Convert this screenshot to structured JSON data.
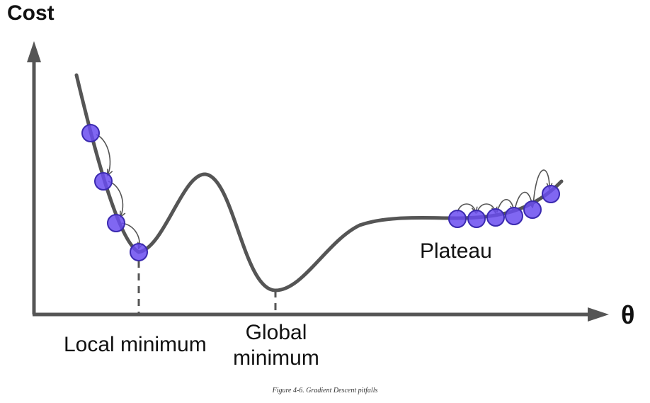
{
  "axes": {
    "y_label": "Cost",
    "x_label": "θ"
  },
  "labels": {
    "local_minimum": "Local minimum",
    "global_minimum": "Global minimum",
    "plateau": "Plateau"
  },
  "caption": "Figure 4-6. Gradient Descent pitfalls",
  "colors": {
    "axis": "#555555",
    "curve": "#555555",
    "ball_fill": "#6a4cf0",
    "ball_stroke": "#3b2ab0"
  },
  "steps": {
    "local_descent_balls": 4,
    "plateau_balls": 6
  }
}
